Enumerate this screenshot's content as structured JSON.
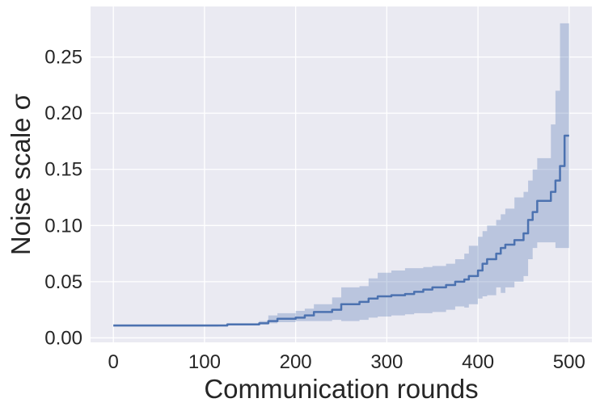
{
  "chart_data": {
    "type": "line",
    "xlabel": "Communication rounds",
    "ylabel": "Noise scale σ",
    "xlim": [
      -25,
      525
    ],
    "ylim": [
      -0.004,
      0.295
    ],
    "xticks": [
      0,
      100,
      200,
      300,
      400,
      500
    ],
    "xtick_labels": [
      "0",
      "100",
      "200",
      "300",
      "400",
      "500"
    ],
    "yticks": [
      0.0,
      0.05,
      0.1,
      0.15,
      0.2,
      0.25
    ],
    "ytick_labels": [
      "0.00",
      "0.05",
      "0.10",
      "0.15",
      "0.20",
      "0.25"
    ],
    "grid": true,
    "colors": {
      "line": "#4c72b0",
      "band": "#4c72b0",
      "background": "#eaeaf2",
      "grid": "#ffffff"
    },
    "series": [
      {
        "x": [
          0,
          115,
          125,
          160,
          170,
          180,
          200,
          210,
          220,
          240,
          250,
          270,
          280,
          290,
          305,
          320,
          330,
          340,
          350,
          365,
          375,
          385,
          390,
          400,
          405,
          410,
          420,
          425,
          430,
          440,
          450,
          455,
          460,
          465,
          480,
          485,
          490,
          495,
          500
        ],
        "y": [
          0.011,
          0.011,
          0.012,
          0.013,
          0.015,
          0.017,
          0.018,
          0.02,
          0.023,
          0.025,
          0.03,
          0.032,
          0.035,
          0.037,
          0.038,
          0.039,
          0.041,
          0.043,
          0.045,
          0.047,
          0.05,
          0.052,
          0.055,
          0.06,
          0.066,
          0.07,
          0.075,
          0.08,
          0.083,
          0.087,
          0.093,
          0.105,
          0.112,
          0.122,
          0.13,
          0.14,
          0.153,
          0.18,
          0.18
        ],
        "lower": [
          0.01,
          0.01,
          0.011,
          0.011,
          0.012,
          0.013,
          0.014,
          0.015,
          0.015,
          0.015,
          0.016,
          0.015,
          0.016,
          0.018,
          0.019,
          0.02,
          0.021,
          0.022,
          0.022,
          0.023,
          0.025,
          0.028,
          0.027,
          0.03,
          0.035,
          0.037,
          0.038,
          0.045,
          0.04,
          0.045,
          0.05,
          0.055,
          0.07,
          0.08,
          0.085,
          0.085,
          0.08,
          0.08,
          0.08
        ],
        "upper": [
          0.012,
          0.012,
          0.013,
          0.015,
          0.02,
          0.022,
          0.024,
          0.026,
          0.03,
          0.036,
          0.045,
          0.046,
          0.053,
          0.058,
          0.06,
          0.062,
          0.062,
          0.063,
          0.064,
          0.066,
          0.07,
          0.075,
          0.082,
          0.09,
          0.095,
          0.1,
          0.105,
          0.11,
          0.115,
          0.125,
          0.13,
          0.14,
          0.15,
          0.16,
          0.19,
          0.22,
          0.28,
          0.28,
          0.28
        ]
      }
    ]
  }
}
